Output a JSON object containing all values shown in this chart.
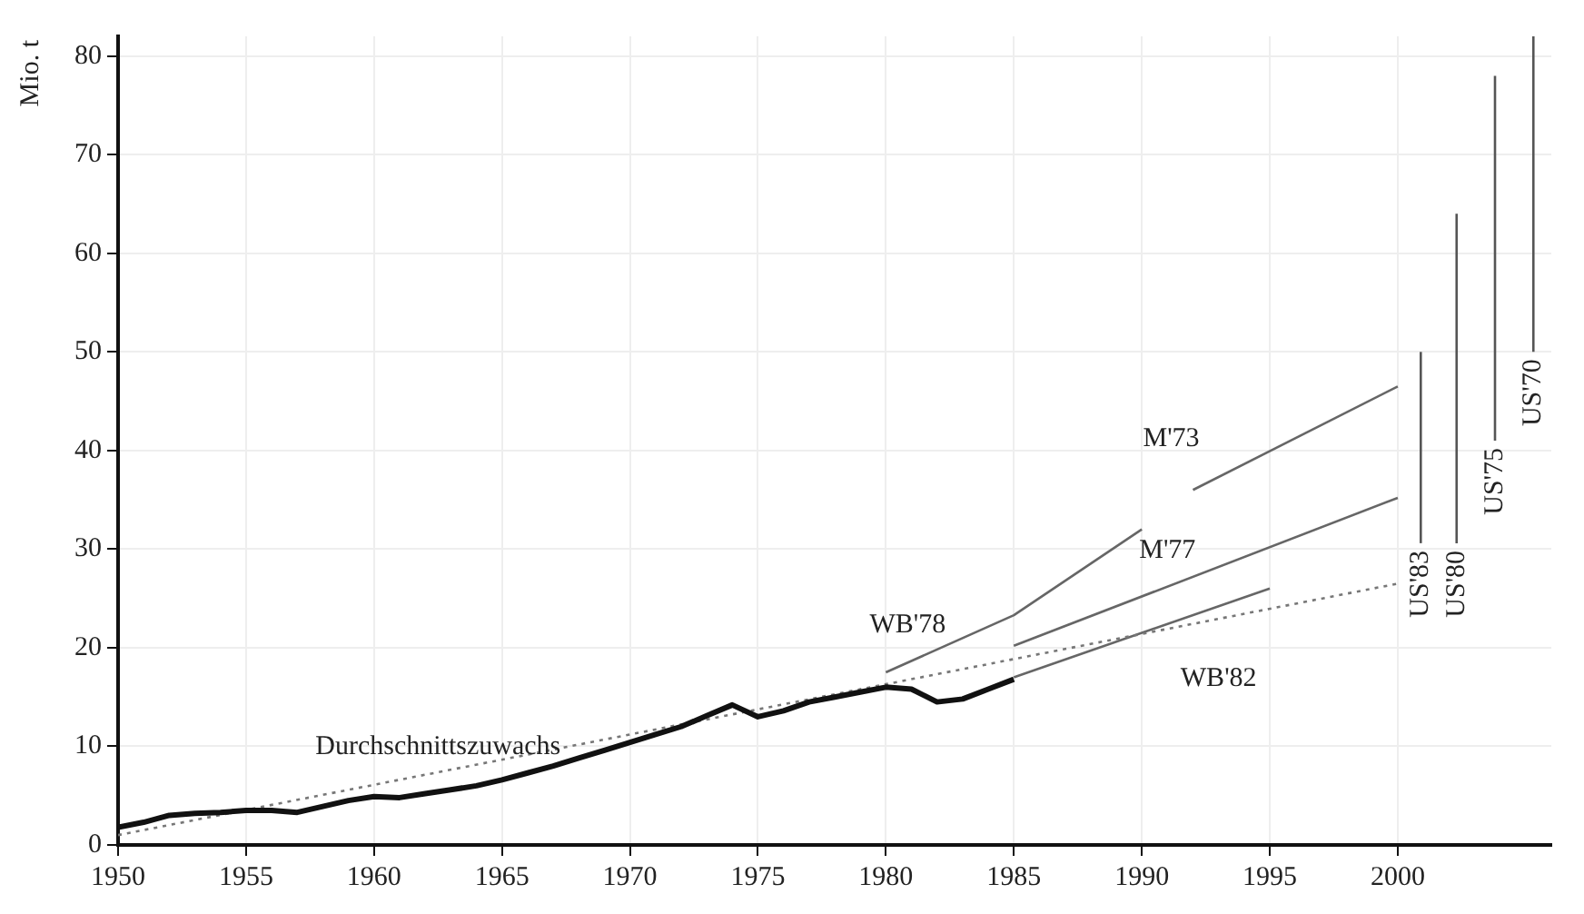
{
  "chart_data": {
    "type": "line",
    "ylabel": "Mio. t",
    "xlim": [
      1950,
      2006
    ],
    "ylim": [
      0,
      82
    ],
    "xticks": [
      1950,
      1955,
      1960,
      1965,
      1970,
      1975,
      1980,
      1985,
      1990,
      1995,
      2000
    ],
    "yticks": [
      0,
      10,
      20,
      30,
      40,
      50,
      60,
      70,
      80
    ],
    "grid": true,
    "legend": false,
    "marker": "none",
    "series": [
      {
        "color": "#111111",
        "x": [
          1950,
          1951,
          1952,
          1953,
          1954,
          1955,
          1956,
          1957,
          1958,
          1959,
          1960,
          1961,
          1962,
          1963,
          1964,
          1965,
          1966,
          1967,
          1968,
          1969,
          1970,
          1971,
          1972,
          1973,
          1974,
          1975,
          1976,
          1977,
          1978,
          1979,
          1980,
          1981,
          1982,
          1983,
          1984,
          1985
        ],
        "values": [
          1.8,
          2.3,
          3.0,
          3.2,
          3.3,
          3.5,
          3.5,
          3.3,
          3.9,
          4.5,
          4.9,
          4.8,
          5.2,
          5.6,
          6.0,
          6.6,
          7.3,
          8.0,
          8.8,
          9.6,
          10.4,
          11.2,
          12.0,
          13.1,
          14.2,
          13.0,
          13.6,
          14.5,
          15.0,
          15.5,
          16.0,
          15.8,
          14.5,
          14.8,
          15.8,
          16.8
        ]
      },
      {
        "name": "Durchschnittszuwachs",
        "color": "#777777",
        "line_style": "dotted",
        "x": [
          1950,
          2000
        ],
        "values": [
          1.0,
          26.5
        ]
      },
      {
        "name": "WB'78",
        "color": "#666666",
        "x": [
          1980,
          1985,
          1990
        ],
        "values": [
          17.5,
          23.3,
          32
        ]
      },
      {
        "name": "M'73",
        "color": "#666666",
        "x": [
          1992,
          2000
        ],
        "values": [
          36,
          46.5
        ]
      },
      {
        "name": "M'77",
        "color": "#666666",
        "x": [
          1985,
          2000
        ],
        "values": [
          20.2,
          35.2
        ]
      },
      {
        "name": "WB'82",
        "color": "#666666",
        "x": [
          1985,
          1995
        ],
        "values": [
          17,
          26
        ]
      },
      {
        "name": "US'83",
        "color": "#555555",
        "x": [
          2000.9,
          2000.9
        ],
        "values": [
          30.6,
          50
        ]
      },
      {
        "name": "US'80",
        "color": "#555555",
        "x": [
          2002.3,
          2002.3
        ],
        "values": [
          30.6,
          64
        ]
      },
      {
        "name": "US'75",
        "color": "#555555",
        "x": [
          2003.8,
          2003.8
        ],
        "values": [
          41,
          78
        ]
      },
      {
        "name": "US'70",
        "color": "#555555",
        "x": [
          2005.3,
          2005.3
        ],
        "values": [
          50,
          82
        ]
      }
    ]
  }
}
